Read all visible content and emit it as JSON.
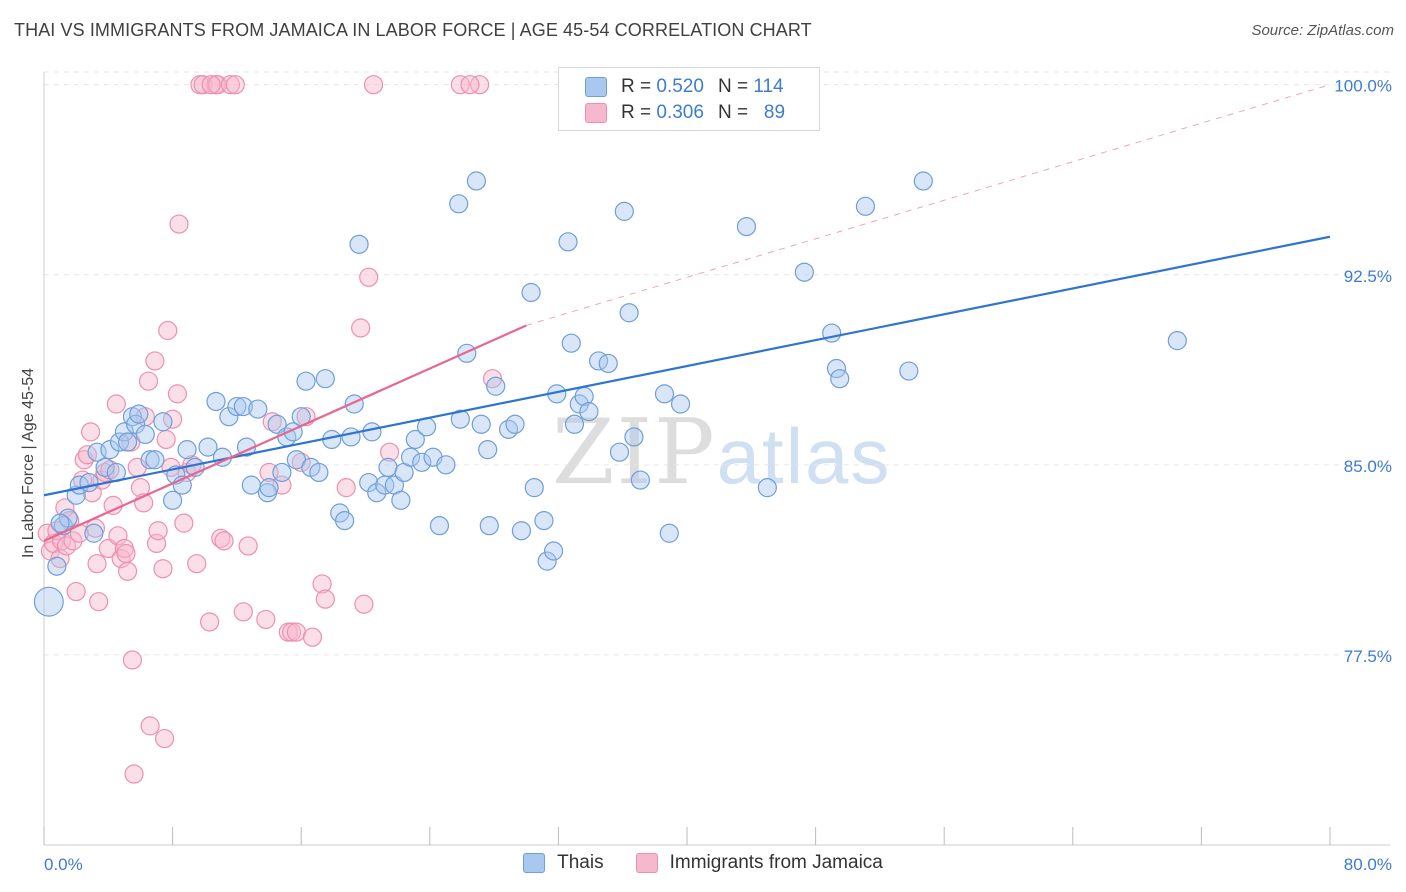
{
  "title": "THAI VS IMMIGRANTS FROM JAMAICA IN LABOR FORCE | AGE 45-54 CORRELATION CHART",
  "source": "Source: ZipAtlas.com",
  "watermark": {
    "zip": "ZIP",
    "atlas": "atlas"
  },
  "legend_top": {
    "r_label": "R =",
    "n_label": "N =",
    "rows": [
      {
        "r": "0.520",
        "n": "114",
        "color": "#a9c8f0"
      },
      {
        "r": "0.306",
        "n": "89",
        "color": "#f6b8cc"
      }
    ]
  },
  "legend_bottom": [
    {
      "label": "Thais",
      "color": "#a9c8f0"
    },
    {
      "label": "Immigrants from Jamaica",
      "color": "#f6b8cc"
    }
  ],
  "colors": {
    "blue_fill": "#a9c8f0",
    "blue_stroke": "#6f9fd8",
    "blue_line": "#2f74d0",
    "pink_fill": "#f6b8cc",
    "pink_stroke": "#ee8fae",
    "pink_line": "#e8668f",
    "axis_label": "#3d7ccf",
    "grid": "#e6e6e6"
  },
  "chart_data": {
    "type": "scatter",
    "title": "THAI VS IMMIGRANTS FROM JAMAICA IN LABOR FORCE | AGE 45-54 CORRELATION CHART",
    "xlabel": "",
    "ylabel": "In Labor Force | Age 45-54",
    "xlim": [
      0,
      80
    ],
    "ylim": [
      70,
      100.5
    ],
    "x_tick_labels": [
      "0.0%",
      "80.0%"
    ],
    "y_ticks": [
      77.5,
      85.0,
      92.5,
      100.0
    ],
    "y_tick_labels": [
      "77.5%",
      "85.0%",
      "92.5%",
      "100.0%"
    ],
    "grid": true,
    "legend_placement": "top-center",
    "series": [
      {
        "name": "Thais",
        "trend": {
          "x0": 0,
          "y0": 83.8,
          "x1": 80,
          "y1": 94.0
        },
        "points": [
          [
            0.3,
            79.6,
            1.6
          ],
          [
            0.8,
            81.0,
            1.0
          ],
          [
            1.2,
            82.6,
            1.0
          ],
          [
            1.5,
            82.9,
            1.0
          ],
          [
            2.0,
            83.8,
            1.0
          ],
          [
            2.2,
            84.2,
            1.0
          ],
          [
            2.8,
            84.3,
            1.0
          ],
          [
            3.1,
            82.3,
            1.0
          ],
          [
            3.3,
            85.5,
            1.0
          ],
          [
            3.8,
            84.9,
            1.0
          ],
          [
            4.1,
            85.6,
            1.0
          ],
          [
            4.5,
            84.7,
            1.0
          ],
          [
            4.7,
            85.9,
            1.0
          ],
          [
            5.0,
            86.3,
            1.0
          ],
          [
            5.2,
            85.9,
            1.0
          ],
          [
            5.5,
            86.9,
            1.0
          ],
          [
            5.7,
            86.6,
            1.0
          ],
          [
            5.9,
            87.0,
            1.0
          ],
          [
            6.3,
            86.2,
            1.0
          ],
          [
            6.6,
            85.2,
            1.0
          ],
          [
            6.9,
            85.2,
            1.0
          ],
          [
            7.4,
            86.7,
            1.0
          ],
          [
            8.0,
            83.6,
            1.0
          ],
          [
            8.2,
            84.6,
            1.0
          ],
          [
            8.6,
            84.2,
            1.0
          ],
          [
            8.9,
            85.6,
            1.0
          ],
          [
            9.4,
            84.9,
            1.0
          ],
          [
            10.2,
            85.7,
            1.0
          ],
          [
            10.7,
            87.5,
            1.0
          ],
          [
            11.1,
            85.3,
            1.0
          ],
          [
            11.5,
            86.9,
            1.0
          ],
          [
            12.0,
            87.3,
            1.0
          ],
          [
            12.4,
            87.3,
            1.0
          ],
          [
            12.6,
            85.7,
            1.0
          ],
          [
            12.9,
            84.2,
            1.0
          ],
          [
            13.3,
            87.2,
            1.0
          ],
          [
            13.9,
            83.9,
            1.0
          ],
          [
            14.0,
            84.1,
            1.0
          ],
          [
            14.5,
            86.6,
            1.0
          ],
          [
            14.8,
            84.7,
            1.0
          ],
          [
            15.1,
            86.1,
            1.0
          ],
          [
            15.5,
            86.3,
            1.0
          ],
          [
            15.7,
            85.2,
            1.0
          ],
          [
            16.0,
            86.9,
            1.0
          ],
          [
            16.3,
            88.3,
            1.0
          ],
          [
            16.6,
            84.9,
            1.0
          ],
          [
            17.1,
            84.7,
            1.0
          ],
          [
            17.5,
            88.4,
            1.0
          ],
          [
            17.9,
            86.0,
            1.0
          ],
          [
            18.4,
            83.1,
            1.0
          ],
          [
            18.7,
            82.8,
            1.0
          ],
          [
            19.1,
            86.1,
            1.0
          ],
          [
            19.3,
            87.4,
            1.0
          ],
          [
            19.6,
            93.7,
            1.0
          ],
          [
            20.2,
            84.3,
            1.0
          ],
          [
            20.4,
            86.3,
            1.0
          ],
          [
            20.7,
            83.9,
            1.0
          ],
          [
            21.2,
            84.2,
            1.0
          ],
          [
            21.4,
            84.9,
            1.0
          ],
          [
            21.8,
            84.2,
            1.0
          ],
          [
            22.2,
            83.6,
            1.0
          ],
          [
            22.4,
            84.7,
            1.0
          ],
          [
            22.8,
            85.3,
            1.0
          ],
          [
            23.1,
            86.0,
            1.0
          ],
          [
            23.5,
            85.1,
            1.0
          ],
          [
            23.8,
            86.5,
            1.0
          ],
          [
            24.2,
            85.3,
            1.0
          ],
          [
            24.6,
            82.6,
            1.0
          ],
          [
            25.0,
            85.0,
            1.0
          ],
          [
            25.8,
            95.3,
            1.0
          ],
          [
            25.9,
            86.8,
            1.0
          ],
          [
            26.3,
            89.4,
            1.0
          ],
          [
            26.9,
            96.2,
            1.0
          ],
          [
            27.2,
            86.6,
            1.0
          ],
          [
            27.6,
            85.6,
            1.0
          ],
          [
            27.7,
            82.6,
            1.0
          ],
          [
            28.1,
            88.1,
            1.0
          ],
          [
            28.9,
            86.4,
            1.0
          ],
          [
            29.3,
            86.6,
            1.0
          ],
          [
            29.7,
            82.4,
            1.0
          ],
          [
            30.3,
            91.8,
            1.0
          ],
          [
            30.5,
            84.1,
            1.0
          ],
          [
            31.1,
            82.8,
            1.0
          ],
          [
            31.3,
            81.2,
            1.0
          ],
          [
            31.7,
            81.6,
            1.0
          ],
          [
            31.9,
            87.8,
            1.0
          ],
          [
            32.6,
            93.8,
            1.0
          ],
          [
            32.8,
            89.8,
            1.0
          ],
          [
            33.0,
            86.6,
            1.0
          ],
          [
            33.3,
            87.4,
            1.0
          ],
          [
            33.6,
            87.7,
            1.0
          ],
          [
            33.9,
            87.1,
            1.0
          ],
          [
            34.5,
            89.1,
            1.0
          ],
          [
            35.1,
            89.0,
            1.0
          ],
          [
            35.8,
            85.5,
            1.0
          ],
          [
            36.1,
            95.0,
            1.0
          ],
          [
            36.4,
            91.0,
            1.0
          ],
          [
            36.7,
            86.1,
            1.0
          ],
          [
            37.1,
            84.4,
            1.0
          ],
          [
            38.6,
            87.8,
            1.0
          ],
          [
            38.9,
            82.3,
            1.0
          ],
          [
            39.6,
            87.4,
            1.0
          ],
          [
            41.3,
            100.0,
            1.0
          ],
          [
            43.7,
            94.4,
            1.0
          ],
          [
            45.0,
            84.1,
            1.0
          ],
          [
            47.3,
            92.6,
            1.0
          ],
          [
            49.0,
            90.2,
            1.0
          ],
          [
            49.3,
            88.8,
            1.0
          ],
          [
            49.5,
            88.4,
            1.0
          ],
          [
            51.1,
            95.2,
            1.0
          ],
          [
            53.8,
            88.7,
            1.0
          ],
          [
            54.7,
            96.2,
            1.0
          ],
          [
            70.5,
            89.9,
            1.0
          ],
          [
            1.0,
            82.7,
            1.0
          ]
        ]
      },
      {
        "name": "Immigrants from Jamaica",
        "trend": {
          "x0": 0,
          "y0": 82.0,
          "x1": 30,
          "y1": 90.5,
          "dash_to_x": 80,
          "dash_to_y": 100.0
        },
        "points": [
          [
            0.2,
            82.3,
            1.0
          ],
          [
            0.4,
            81.6,
            1.0
          ],
          [
            0.6,
            81.9,
            1.0
          ],
          [
            0.8,
            82.4,
            1.0
          ],
          [
            1.0,
            81.3,
            1.0
          ],
          [
            1.1,
            82.0,
            1.0
          ],
          [
            1.3,
            83.3,
            1.0
          ],
          [
            1.4,
            81.8,
            1.0
          ],
          [
            1.6,
            82.8,
            1.0
          ],
          [
            1.8,
            82.0,
            1.0
          ],
          [
            2.0,
            80.0,
            1.0
          ],
          [
            2.2,
            82.3,
            1.0
          ],
          [
            2.4,
            84.4,
            1.0
          ],
          [
            2.5,
            85.2,
            1.0
          ],
          [
            2.7,
            85.4,
            1.0
          ],
          [
            2.9,
            86.3,
            1.0
          ],
          [
            3.0,
            83.9,
            1.0
          ],
          [
            3.2,
            82.5,
            1.0
          ],
          [
            3.3,
            81.1,
            1.0
          ],
          [
            3.4,
            79.6,
            1.0
          ],
          [
            3.6,
            84.4,
            1.0
          ],
          [
            3.8,
            84.7,
            1.0
          ],
          [
            4.0,
            81.7,
            1.0
          ],
          [
            4.1,
            84.8,
            1.0
          ],
          [
            4.3,
            83.4,
            1.0
          ],
          [
            4.5,
            87.4,
            1.0
          ],
          [
            4.6,
            82.2,
            1.0
          ],
          [
            4.8,
            81.3,
            1.0
          ],
          [
            5.0,
            81.7,
            1.0
          ],
          [
            5.1,
            81.5,
            1.0
          ],
          [
            5.2,
            80.8,
            1.0
          ],
          [
            5.4,
            85.9,
            1.0
          ],
          [
            5.5,
            77.3,
            1.0
          ],
          [
            5.6,
            72.8,
            1.0
          ],
          [
            5.8,
            84.9,
            1.0
          ],
          [
            6.0,
            84.1,
            1.0
          ],
          [
            6.2,
            83.5,
            1.0
          ],
          [
            6.3,
            86.9,
            1.0
          ],
          [
            6.5,
            88.3,
            1.0
          ],
          [
            6.6,
            74.7,
            1.0
          ],
          [
            6.9,
            89.1,
            1.0
          ],
          [
            7.0,
            81.9,
            1.0
          ],
          [
            7.1,
            82.4,
            1.0
          ],
          [
            7.4,
            80.9,
            1.0
          ],
          [
            7.5,
            74.2,
            1.0
          ],
          [
            7.6,
            86.0,
            1.0
          ],
          [
            7.7,
            90.3,
            1.0
          ],
          [
            7.9,
            84.9,
            1.0
          ],
          [
            8.0,
            86.8,
            1.0
          ],
          [
            8.3,
            87.8,
            1.0
          ],
          [
            8.4,
            94.5,
            1.0
          ],
          [
            8.7,
            82.7,
            1.0
          ],
          [
            8.9,
            84.7,
            1.0
          ],
          [
            9.2,
            85.0,
            1.0
          ],
          [
            9.5,
            81.1,
            1.0
          ],
          [
            9.7,
            100.0,
            1.0
          ],
          [
            9.9,
            100.0,
            1.0
          ],
          [
            10.3,
            78.8,
            1.0
          ],
          [
            10.7,
            100.0,
            1.0
          ],
          [
            10.8,
            100.0,
            1.0
          ],
          [
            11.0,
            82.1,
            1.0
          ],
          [
            11.2,
            82.0,
            1.0
          ],
          [
            11.6,
            100.0,
            1.0
          ],
          [
            11.9,
            100.0,
            1.0
          ],
          [
            12.4,
            79.2,
            1.0
          ],
          [
            12.7,
            81.8,
            1.0
          ],
          [
            13.8,
            78.9,
            1.0
          ],
          [
            14.0,
            84.7,
            1.0
          ],
          [
            14.2,
            86.7,
            1.0
          ],
          [
            14.8,
            84.2,
            1.0
          ],
          [
            15.2,
            78.4,
            1.0
          ],
          [
            15.4,
            78.4,
            1.0
          ],
          [
            15.7,
            78.4,
            1.0
          ],
          [
            16.0,
            85.1,
            1.0
          ],
          [
            16.3,
            86.9,
            1.0
          ],
          [
            16.7,
            78.2,
            1.0
          ],
          [
            17.3,
            80.3,
            1.0
          ],
          [
            17.5,
            79.7,
            1.0
          ],
          [
            18.8,
            84.1,
            1.0
          ],
          [
            19.7,
            90.4,
            1.0
          ],
          [
            19.9,
            79.5,
            1.0
          ],
          [
            20.2,
            92.4,
            1.0
          ],
          [
            20.5,
            100.0,
            1.0
          ],
          [
            21.5,
            85.5,
            1.0
          ],
          [
            25.9,
            100.0,
            1.0
          ],
          [
            27.1,
            100.0,
            1.0
          ],
          [
            27.9,
            88.4,
            1.0
          ],
          [
            26.5,
            100.0,
            1.0
          ],
          [
            10.4,
            100.0,
            1.0
          ]
        ]
      }
    ]
  }
}
